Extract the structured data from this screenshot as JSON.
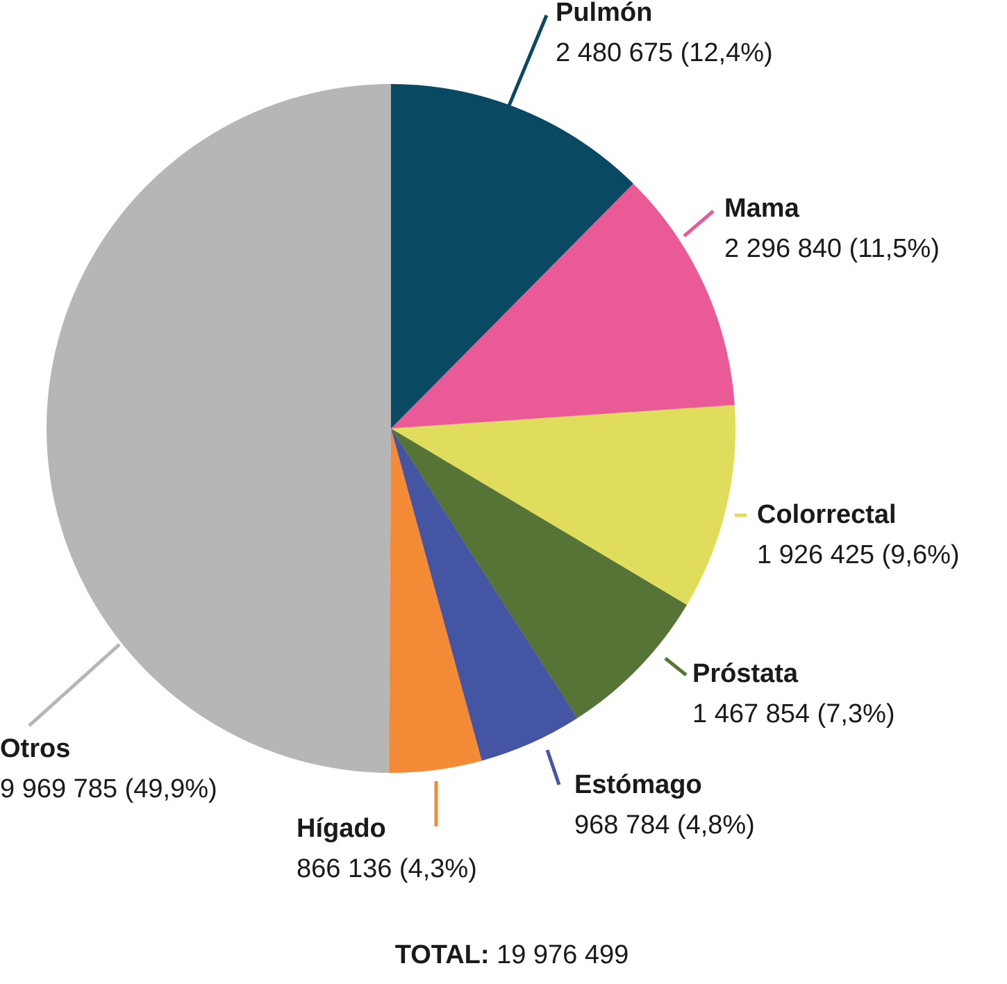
{
  "chart_data": {
    "type": "pie",
    "categories": [
      "Pulmón",
      "Mama",
      "Colorrectal",
      "Próstata",
      "Estómago",
      "Hígado",
      "Otros"
    ],
    "values": [
      2480675,
      2296840,
      1926425,
      1467854,
      968784,
      866136,
      9969785
    ],
    "value_labels": [
      "2 480 675 (12,4%)",
      "2 296 840 (11,5%)",
      "1 926 425 (9,6%)",
      "1 467 854 (7,3%)",
      "968 784 (4,8%)",
      "866 136 (4,3%)",
      "9 969 785 (49,9%)"
    ],
    "colors": [
      "#094962",
      "#e95a97",
      "#e0dc5c",
      "#577437",
      "#4456a3",
      "#f38a36",
      "#b5b6b5"
    ],
    "total_title": "TOTAL:",
    "total": {
      "value": 19976499,
      "label": "19 976 499"
    }
  }
}
